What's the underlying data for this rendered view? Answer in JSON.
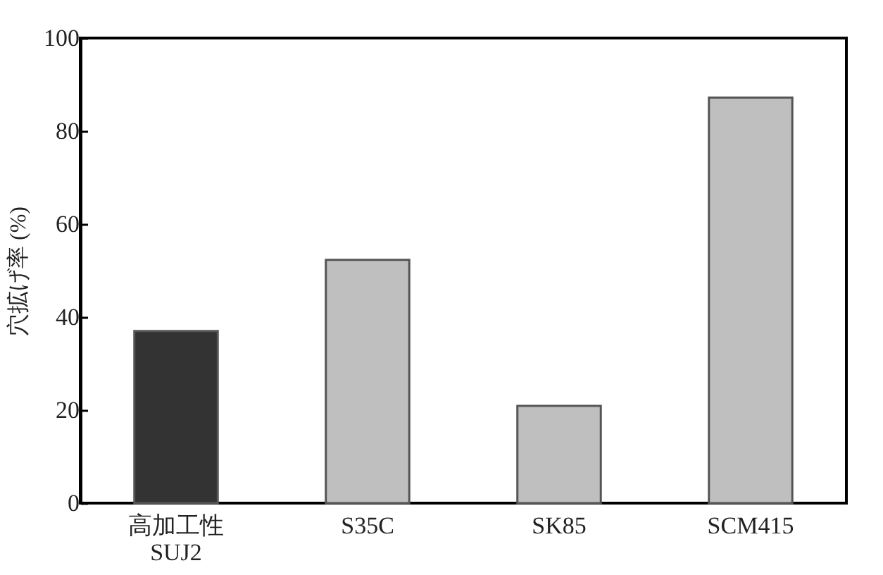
{
  "chart_data": {
    "type": "bar",
    "ylabel": "穴拡げ率 (%)",
    "categories": [
      "高加工性\nSUJ2",
      "S35C",
      "SK85",
      "SCM415"
    ],
    "values": [
      37,
      52.3,
      20.9,
      87.2
    ],
    "colors": [
      "#333333",
      "#bfbfbf",
      "#bfbfbf",
      "#bfbfbf"
    ],
    "ylim": [
      0,
      100
    ],
    "yticks": [
      0,
      20,
      40,
      60,
      80,
      100
    ],
    "grid": false,
    "legend": false
  }
}
